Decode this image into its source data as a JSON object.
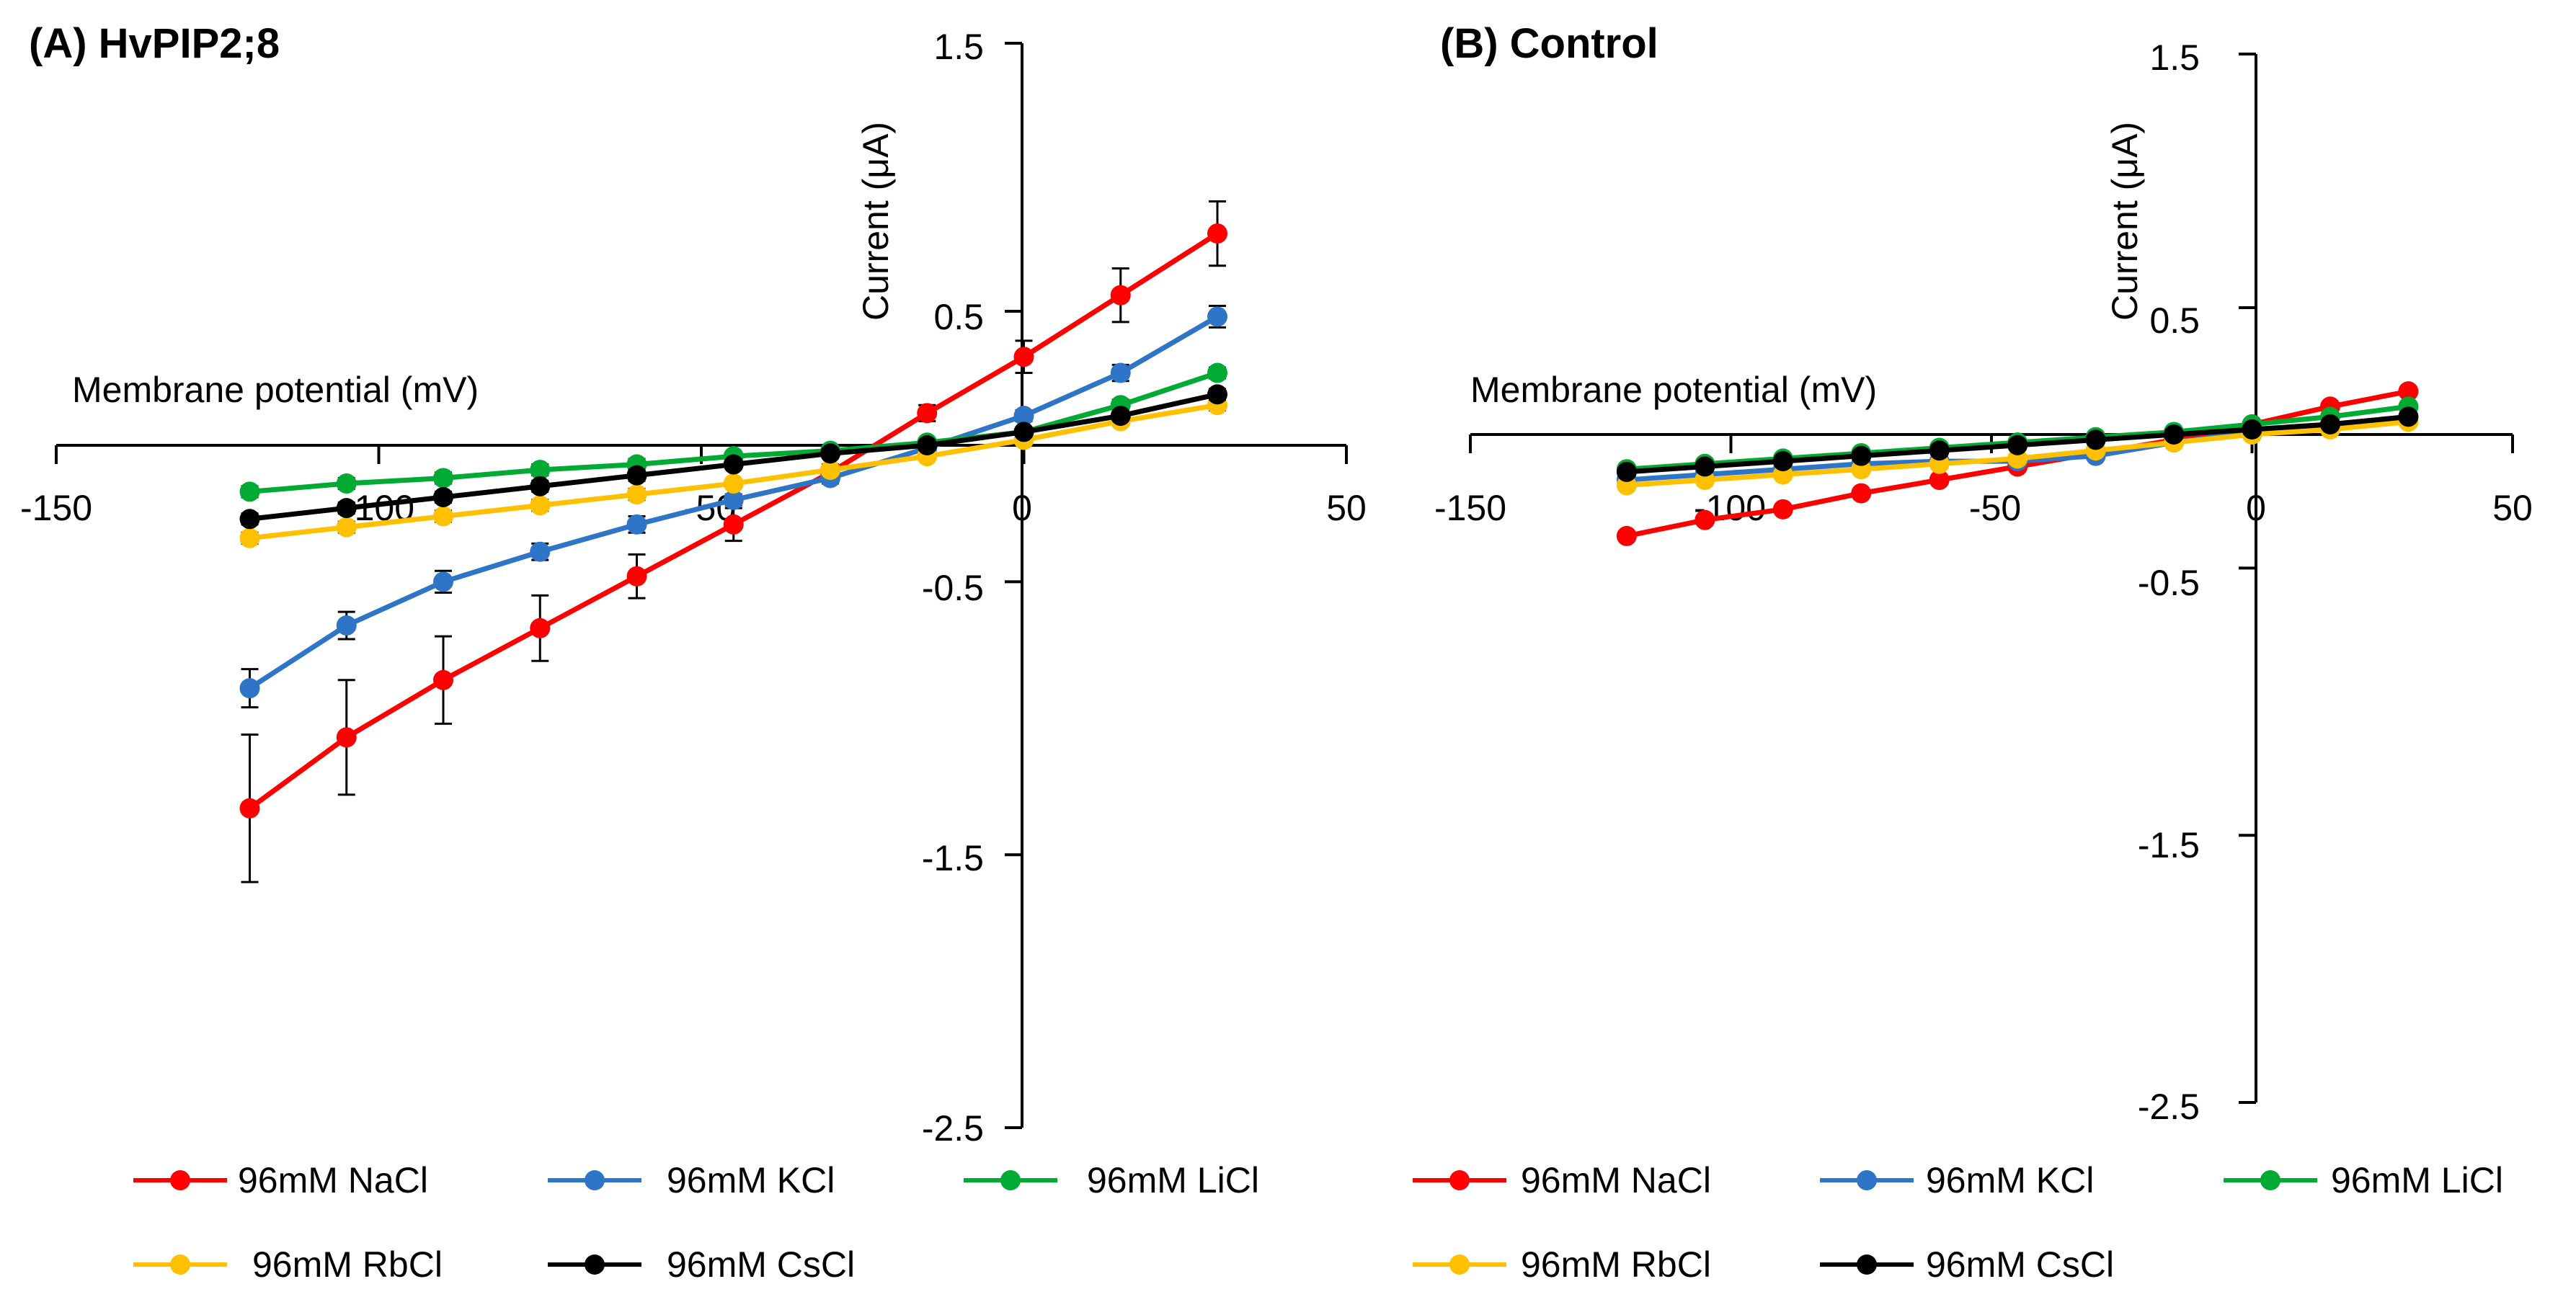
{
  "chart_data": [
    {
      "type": "line",
      "title": "(A) HvPIP2;8",
      "xlabel": "Membrane potential (mV)",
      "ylabel": "Current (μA)",
      "xlim": [
        -150,
        50
      ],
      "ylim": [
        -2.5,
        1.5
      ],
      "x_ticks": [
        "-150",
        "-100",
        "-50",
        "0",
        "50"
      ],
      "y_ticks": [
        "1.5",
        "0.5",
        "-0.5",
        "-1.5",
        "-2.5"
      ],
      "x": [
        -120,
        -105,
        -90,
        -75,
        -60,
        -45,
        -30,
        -15,
        0,
        15,
        30
      ],
      "series": [
        {
          "name": "96mM NaCl",
          "color": "#ff0000",
          "values": [
            -1.33,
            -1.07,
            -0.86,
            -0.67,
            -0.48,
            -0.29,
            -0.1,
            0.12,
            0.33,
            0.56,
            0.79
          ],
          "errors": [
            0.27,
            0.21,
            0.16,
            0.12,
            0.08,
            0.06,
            0.03,
            0.03,
            0.06,
            0.1,
            0.12
          ]
        },
        {
          "name": "96mM KCl",
          "color": "#2e75c7",
          "values": [
            -0.89,
            -0.66,
            -0.5,
            -0.39,
            -0.29,
            -0.2,
            -0.12,
            -0.01,
            0.11,
            0.27,
            0.48
          ],
          "errors": [
            0.07,
            0.05,
            0.04,
            0.03,
            0.03,
            0.02,
            0.02,
            0.02,
            0.02,
            0.03,
            0.04
          ]
        },
        {
          "name": "96mM LiCl",
          "color": "#00aa33",
          "values": [
            -0.17,
            -0.14,
            -0.12,
            -0.09,
            -0.07,
            -0.04,
            -0.02,
            0.01,
            0.05,
            0.15,
            0.27
          ],
          "errors": [
            0.02,
            0.02,
            0.02,
            0.02,
            0.02,
            0.01,
            0.01,
            0.01,
            0.01,
            0.02,
            0.02
          ]
        },
        {
          "name": "96mM RbCl",
          "color": "#ffc000",
          "values": [
            -0.34,
            -0.3,
            -0.26,
            -0.22,
            -0.18,
            -0.14,
            -0.09,
            -0.04,
            0.02,
            0.09,
            0.15
          ],
          "errors": [
            0.02,
            0.02,
            0.02,
            0.02,
            0.02,
            0.01,
            0.01,
            0.01,
            0.01,
            0.01,
            0.02
          ]
        },
        {
          "name": "96mM CsCl",
          "color": "#000000",
          "values": [
            -0.27,
            -0.23,
            -0.19,
            -0.15,
            -0.11,
            -0.07,
            -0.03,
            0.0,
            0.05,
            0.11,
            0.19
          ],
          "errors": [
            0.02,
            0.02,
            0.02,
            0.02,
            0.02,
            0.01,
            0.01,
            0.01,
            0.01,
            0.01,
            0.02
          ]
        }
      ],
      "legend_position": "bottom"
    },
    {
      "type": "line",
      "title": "(B) Control",
      "xlabel": "Membrane potential (mV)",
      "ylabel": "Current (μA)",
      "xlim": [
        -150,
        50
      ],
      "ylim": [
        -2.5,
        1.5
      ],
      "x_ticks": [
        "-150",
        "-100",
        "-50",
        "0",
        "50"
      ],
      "y_ticks": [
        "1.5",
        "0.5",
        "-0.5",
        "-1.5",
        "-2.5"
      ],
      "x": [
        -120,
        -105,
        -90,
        -75,
        -60,
        -45,
        -30,
        -15,
        0,
        15,
        30
      ],
      "series": [
        {
          "name": "96mM NaCl",
          "color": "#ff0000",
          "values": [
            -0.38,
            -0.32,
            -0.28,
            -0.22,
            -0.17,
            -0.12,
            -0.07,
            -0.02,
            0.04,
            0.11,
            0.17
          ]
        },
        {
          "name": "96mM KCl",
          "color": "#2e75c7",
          "values": [
            -0.17,
            -0.15,
            -0.13,
            -0.11,
            -0.1,
            -0.1,
            -0.08,
            -0.03,
            0.01,
            0.04,
            0.07
          ]
        },
        {
          "name": "96mM LiCl",
          "color": "#00aa33",
          "values": [
            -0.13,
            -0.11,
            -0.09,
            -0.07,
            -0.05,
            -0.03,
            -0.01,
            0.01,
            0.04,
            0.07,
            0.11
          ]
        },
        {
          "name": "96mM RbCl",
          "color": "#ffc000",
          "values": [
            -0.19,
            -0.17,
            -0.15,
            -0.13,
            -0.11,
            -0.09,
            -0.06,
            -0.03,
            0.0,
            0.02,
            0.05
          ]
        },
        {
          "name": "96mM CsCl",
          "color": "#000000",
          "values": [
            -0.14,
            -0.12,
            -0.1,
            -0.08,
            -0.06,
            -0.04,
            -0.02,
            0.0,
            0.02,
            0.04,
            0.07
          ]
        }
      ],
      "legend_position": "bottom"
    }
  ]
}
